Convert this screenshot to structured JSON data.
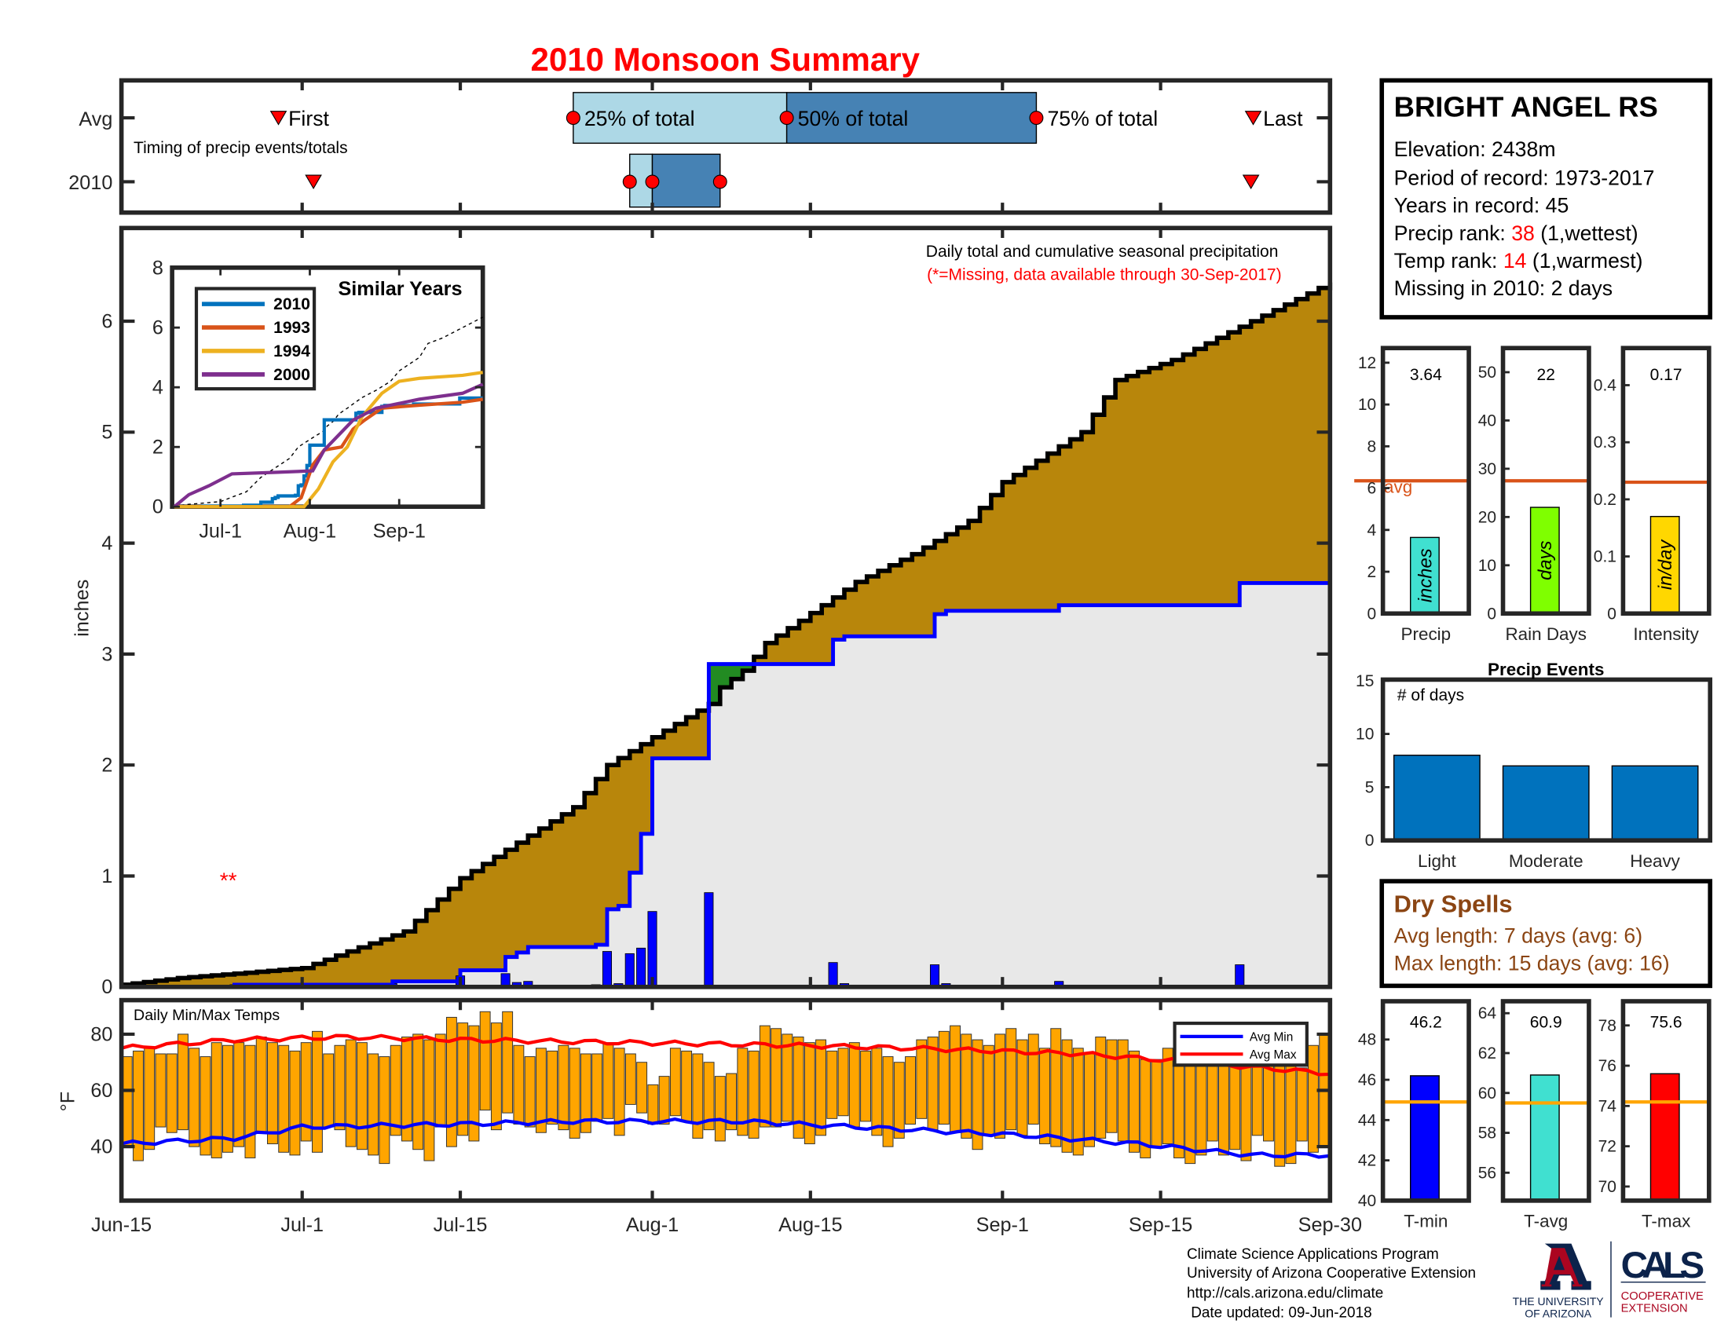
{
  "title": "2010 Monsoon Summary",
  "timing": {
    "row_labels": [
      "Avg",
      "2010"
    ],
    "caption": "Timing of precip events/totals",
    "avg": {
      "first": 13.9,
      "p25": 40,
      "p50": 58.9,
      "p75": 81,
      "last": 100.2
    },
    "y2010": {
      "first": 17,
      "p25": 45,
      "p50": 47,
      "p75": 53,
      "last": 100
    },
    "labels": {
      "first": "First",
      "p25": "25% of total",
      "p50": "50% of total",
      "p75": "75% of total",
      "last": "Last"
    },
    "colors": {
      "light": "#add8e6",
      "dark": "#4682b4",
      "marker": "#ff0000"
    }
  },
  "x_axis": {
    "start": "Jun-15",
    "ticks": [
      {
        "day": 0,
        "label": "Jun-15"
      },
      {
        "day": 16,
        "label": "Jul-1"
      },
      {
        "day": 30,
        "label": "Jul-15"
      },
      {
        "day": 47,
        "label": "Aug-1"
      },
      {
        "day": 61,
        "label": "Aug-15"
      },
      {
        "day": 78,
        "label": "Sep-1"
      },
      {
        "day": 92,
        "label": "Sep-15"
      },
      {
        "day": 107,
        "label": "Sep-30"
      }
    ]
  },
  "chart_data": [
    {
      "type": "area",
      "title": "Daily total and cumulative seasonal precipitation",
      "note": "(*=Missing, data available through 30-Sep-2017)",
      "ylabel": "inches",
      "ylim": [
        0,
        6.84
      ],
      "yticks": [
        0,
        1,
        2,
        3,
        4,
        5,
        6
      ],
      "days": 108,
      "missing_marker": {
        "day": 9.5,
        "value": 1.0,
        "text": "**"
      },
      "avg_cumulative_keypoints": [
        [
          0,
          0.02
        ],
        [
          5,
          0.08
        ],
        [
          10,
          0.12
        ],
        [
          16,
          0.17
        ],
        [
          20,
          0.32
        ],
        [
          25,
          0.5
        ],
        [
          30,
          0.98
        ],
        [
          35,
          1.3
        ],
        [
          40,
          1.62
        ],
        [
          43,
          2.0
        ],
        [
          47,
          2.25
        ],
        [
          52,
          2.55
        ],
        [
          53,
          2.7
        ],
        [
          55,
          2.85
        ],
        [
          57,
          3.1
        ],
        [
          60,
          3.3
        ],
        [
          65,
          3.65
        ],
        [
          70,
          3.9
        ],
        [
          75,
          4.2
        ],
        [
          78,
          4.55
        ],
        [
          85,
          5.0
        ],
        [
          88,
          5.47
        ],
        [
          93,
          5.65
        ],
        [
          100,
          6.0
        ],
        [
          107,
          6.35
        ]
      ],
      "daily_precip_2010": [
        [
          10,
          0.02
        ],
        [
          24,
          0.03
        ],
        [
          30,
          0.1
        ],
        [
          34,
          0.12
        ],
        [
          35,
          0.04
        ],
        [
          36,
          0.05
        ],
        [
          42,
          0.02
        ],
        [
          43,
          0.32
        ],
        [
          44,
          0.03
        ],
        [
          45,
          0.3
        ],
        [
          46,
          0.35
        ],
        [
          47,
          0.68
        ],
        [
          52,
          0.85
        ],
        [
          63,
          0.22
        ],
        [
          64,
          0.03
        ],
        [
          72,
          0.2
        ],
        [
          73,
          0.03
        ],
        [
          83,
          0.05
        ],
        [
          99,
          0.2
        ]
      ],
      "colors": {
        "below_avg": "#b8860b",
        "above_avg": "#228b22",
        "cum_2010": "#e8e8e8",
        "line_2010": "#0000ff",
        "line_avg": "#000000"
      }
    },
    {
      "type": "line",
      "title": "Similar Years",
      "ylim": [
        0,
        8
      ],
      "yticks": [
        0,
        2,
        4,
        6,
        8
      ],
      "xticks": [
        {
          "day": 16,
          "label": "Jul-1"
        },
        {
          "day": 47,
          "label": "Aug-1"
        },
        {
          "day": 78,
          "label": "Sep-1"
        }
      ],
      "series": [
        {
          "name": "2010",
          "color": "#0072bd",
          "points": "cumulative_2010"
        },
        {
          "name": "1993",
          "color": "#d95319",
          "points": [
            [
              0,
              0
            ],
            [
              40,
              0
            ],
            [
              44,
              0.3
            ],
            [
              48,
              1.4
            ],
            [
              52,
              1.9
            ],
            [
              58,
              2.0
            ],
            [
              62,
              2.6
            ],
            [
              66,
              2.9
            ],
            [
              72,
              3.3
            ],
            [
              85,
              3.4
            ],
            [
              100,
              3.5
            ],
            [
              107,
              3.6
            ]
          ]
        },
        {
          "name": "1994",
          "color": "#edb120",
          "points": [
            [
              0,
              0
            ],
            [
              45,
              0
            ],
            [
              50,
              0.6
            ],
            [
              55,
              1.5
            ],
            [
              60,
              2.0
            ],
            [
              65,
              3.0
            ],
            [
              72,
              3.8
            ],
            [
              78,
              4.2
            ],
            [
              85,
              4.3
            ],
            [
              100,
              4.4
            ],
            [
              107,
              4.5
            ]
          ]
        },
        {
          "name": "2000",
          "color": "#7e2f8e",
          "points": [
            [
              0,
              0
            ],
            [
              5,
              0.4
            ],
            [
              12,
              0.7
            ],
            [
              20,
              1.1
            ],
            [
              35,
              1.15
            ],
            [
              48,
              1.2
            ],
            [
              52,
              1.9
            ],
            [
              62,
              2.9
            ],
            [
              70,
              3.3
            ],
            [
              85,
              3.6
            ],
            [
              100,
              3.8
            ],
            [
              107,
              4.1
            ]
          ]
        }
      ]
    },
    {
      "type": "bar",
      "title": "Daily Min/Max Temps",
      "ylabel": "°F",
      "ylim": [
        20.8,
        92.1
      ],
      "yticks": [
        40,
        60,
        80
      ],
      "tmax": [
        72,
        74,
        75,
        73,
        73,
        80,
        75,
        72,
        77,
        76,
        77,
        76,
        79,
        77,
        76,
        74,
        77,
        81,
        73,
        76,
        78,
        77,
        73,
        72,
        76,
        79,
        80,
        78,
        80,
        86,
        84,
        83,
        88,
        84,
        88,
        76,
        72,
        75,
        74,
        76,
        75,
        73,
        73,
        77,
        75,
        73,
        70,
        62,
        65,
        75,
        74,
        73,
        70,
        65,
        66,
        75,
        74,
        83,
        82,
        80,
        79,
        77,
        78,
        74,
        75,
        77,
        74,
        75,
        72,
        70,
        72,
        78,
        79,
        81,
        83,
        80,
        78,
        76,
        80,
        82,
        78,
        80,
        75,
        82,
        78,
        75,
        73,
        79,
        78,
        78,
        74,
        71,
        71,
        75,
        82,
        78,
        78,
        70,
        70,
        71,
        73,
        74,
        72,
        70,
        70,
        68,
        76,
        80
      ],
      "tmin": [
        40,
        35,
        39,
        47,
        45,
        46,
        40,
        37,
        36,
        38,
        40,
        36,
        45,
        41,
        38,
        37,
        42,
        38,
        47,
        46,
        40,
        39,
        37,
        34,
        44,
        42,
        39,
        35,
        47,
        40,
        44,
        42,
        53,
        46,
        52,
        48,
        47,
        45,
        48,
        46,
        43,
        45,
        49,
        50,
        44,
        55,
        52,
        48,
        48,
        51,
        49,
        43,
        46,
        42,
        46,
        44,
        43,
        47,
        47,
        49,
        43,
        41,
        44,
        50,
        51,
        47,
        49,
        44,
        40,
        43,
        48,
        50,
        46,
        48,
        45,
        43,
        39,
        44,
        43,
        46,
        44,
        48,
        41,
        40,
        38,
        37,
        40,
        43,
        45,
        42,
        38,
        36,
        40,
        41,
        36,
        34,
        37,
        42,
        37,
        39,
        35,
        44,
        42,
        33,
        34,
        42,
        38,
        40
      ],
      "avg_max_keypoints": [
        [
          0,
          75
        ],
        [
          10,
          78
        ],
        [
          20,
          79
        ],
        [
          30,
          78
        ],
        [
          45,
          77
        ],
        [
          60,
          76
        ],
        [
          70,
          75
        ],
        [
          85,
          73
        ],
        [
          95,
          70
        ],
        [
          107,
          66
        ]
      ],
      "avg_min_keypoints": [
        [
          0,
          41
        ],
        [
          10,
          43
        ],
        [
          16,
          47
        ],
        [
          30,
          48
        ],
        [
          40,
          49
        ],
        [
          55,
          49
        ],
        [
          65,
          47
        ],
        [
          80,
          44
        ],
        [
          90,
          41
        ],
        [
          100,
          37
        ],
        [
          107,
          37
        ]
      ],
      "legend": [
        "Avg Min",
        "Avg Max"
      ],
      "colors": {
        "bar": "#ffa500",
        "avg_min": "#0000ff",
        "avg_max": "#ff0000"
      }
    },
    {
      "type": "bar",
      "name": "precip-summary",
      "panels": [
        {
          "label": "Precip",
          "value": "3.64",
          "unit": "inches",
          "v": 3.64,
          "avg": 6.35,
          "ylim": [
            0,
            12.7
          ],
          "yticks": [
            0,
            2,
            4,
            6,
            8,
            10,
            12
          ],
          "color": "#40e0d0",
          "avg_label": "avg"
        },
        {
          "label": "Rain Days",
          "value": "22",
          "unit": "days",
          "v": 22,
          "avg": 27.5,
          "ylim": [
            0,
            55
          ],
          "yticks": [
            0,
            10,
            20,
            30,
            40,
            50
          ],
          "color": "#7fff00"
        },
        {
          "label": "Intensity",
          "value": "0.17",
          "unit": "in/day",
          "v": 0.17,
          "avg": 0.23,
          "ylim": [
            0,
            0.465
          ],
          "yticks": [
            0,
            0.1,
            0.2,
            0.3,
            0.4
          ],
          "color": "#ffd700"
        }
      ]
    },
    {
      "type": "bar",
      "title": "Precip Events",
      "ylabel": "# of days",
      "categories": [
        "Light",
        "Moderate",
        "Heavy"
      ],
      "values": [
        8,
        7,
        7
      ],
      "ylim": [
        0,
        15.1
      ],
      "yticks": [
        0,
        5,
        10,
        15
      ],
      "color": "#0072bd"
    },
    {
      "type": "bar",
      "name": "temp-summary",
      "panels": [
        {
          "label": "T-min",
          "value": "46.2",
          "v": 46.2,
          "avg": 44.9,
          "ylim": [
            40,
            49.9
          ],
          "yticks": [
            40,
            42,
            44,
            46,
            48
          ],
          "color": "#0000ff"
        },
        {
          "label": "T-avg",
          "value": "60.9",
          "v": 60.9,
          "avg": 59.5,
          "ylim": [
            54.6,
            64.6
          ],
          "yticks": [
            56,
            58,
            60,
            62,
            64
          ],
          "color": "#40e0d0"
        },
        {
          "label": "T-max",
          "value": "75.6",
          "v": 75.6,
          "avg": 74.2,
          "ylim": [
            69.3,
            79.2
          ],
          "yticks": [
            70,
            72,
            74,
            76,
            78
          ],
          "color": "#ff0000"
        }
      ],
      "avg_color": "#ffa500"
    }
  ],
  "station": {
    "name": "BRIGHT ANGEL RS",
    "elevation": "Elevation: 2438m",
    "period": "Period of record: 1973-2017",
    "years": "Years in record: 45",
    "precip_rank_label": "Precip rank: ",
    "precip_rank": "38",
    "precip_rank_note": " (1,wettest)",
    "temp_rank_label": "Temp rank: ",
    "temp_rank": "14",
    "temp_rank_note": " (1,warmest)",
    "missing": "Missing in 2010: 2 days"
  },
  "dry_spells": {
    "title": "Dry Spells",
    "avg_length": "Avg length: 7 days (avg: 6)",
    "max_length": "Max length: 15 days (avg: 16)",
    "color": "#8b4513"
  },
  "footer": {
    "lines": [
      "Climate Science Applications Program",
      "University of Arizona Cooperative Extension",
      "http://cals.arizona.edu/climate",
      " Date updated: 09-Jun-2018"
    ],
    "logo_ua": [
      "THE UNIVERSITY",
      "OF ARIZONA"
    ],
    "logo_cals": "CALS",
    "logo_coop": [
      "COOPERATIVE",
      "EXTENSION"
    ]
  }
}
